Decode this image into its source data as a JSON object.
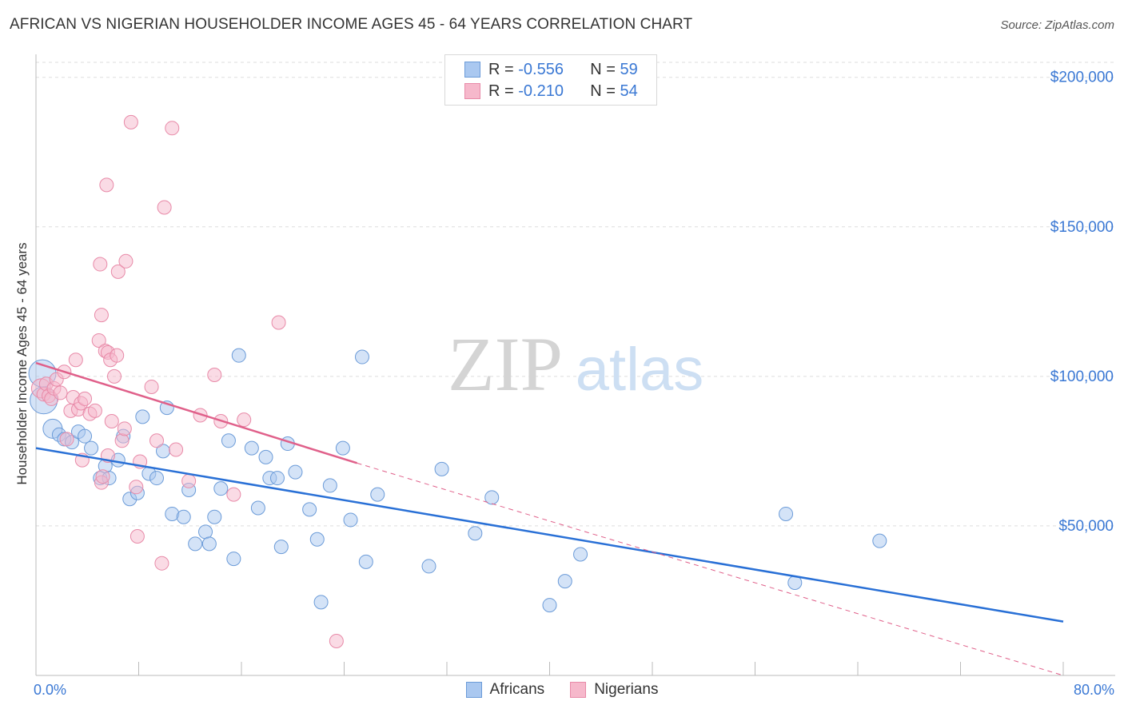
{
  "title": "AFRICAN VS NIGERIAN HOUSEHOLDER INCOME AGES 45 - 64 YEARS CORRELATION CHART",
  "source": "Source: ZipAtlas.com",
  "watermark": {
    "zip": "ZIP",
    "atlas": "atlas"
  },
  "stats": {
    "africans": {
      "r_label": "R =",
      "r": "-0.556",
      "n_label": "N =",
      "n": "59"
    },
    "nigerians": {
      "r_label": "R =",
      "r": "-0.210",
      "n_label": "N =",
      "n": "54"
    }
  },
  "legend": {
    "africans": "Africans",
    "nigerians": "Nigerians"
  },
  "colors": {
    "africans_fill": "#aac8f0",
    "africans_stroke": "#6b9bd8",
    "africans_line": "#2970d6",
    "nigerians_fill": "#f6b8cb",
    "nigerians_stroke": "#e88aa8",
    "nigerians_line": "#e0608a",
    "axis_text": "#3a78d4",
    "grid": "#dddddd"
  },
  "chart_data": {
    "type": "scatter",
    "title": "AFRICAN VS NIGERIAN HOUSEHOLDER INCOME AGES 45 - 64 YEARS CORRELATION CHART",
    "xlabel": "",
    "ylabel": "Householder Income Ages 45 - 64 years",
    "x_tick_labels": [
      "0.0%",
      "80.0%"
    ],
    "y_tick_labels": [
      "$50,000",
      "$100,000",
      "$150,000",
      "$200,000"
    ],
    "y_ticks": [
      50000,
      100000,
      150000,
      200000
    ],
    "xlim": [
      0,
      80
    ],
    "ylim": [
      0,
      205000
    ],
    "grid": true,
    "legend_position": "bottom-center",
    "series": [
      {
        "name": "Africans",
        "points": [
          [
            0.5,
            101000,
            "lg"
          ],
          [
            0.6,
            92000,
            "lg"
          ],
          [
            1.3,
            82500,
            "md"
          ],
          [
            1.8,
            80500,
            "sm"
          ],
          [
            2.2,
            79000,
            "sm"
          ],
          [
            2.8,
            78000,
            "sm"
          ],
          [
            3.3,
            81500,
            "sm"
          ],
          [
            3.8,
            80000,
            "sm"
          ],
          [
            4.3,
            76000,
            "sm"
          ],
          [
            5.0,
            66000,
            "sm"
          ],
          [
            5.4,
            70000,
            "sm"
          ],
          [
            5.7,
            66000,
            "sm"
          ],
          [
            6.4,
            72000,
            "sm"
          ],
          [
            6.8,
            80000,
            "sm"
          ],
          [
            7.3,
            59000,
            "sm"
          ],
          [
            7.9,
            61000,
            "sm"
          ],
          [
            8.3,
            86500,
            "sm"
          ],
          [
            8.8,
            67500,
            "sm"
          ],
          [
            9.4,
            66000,
            "sm"
          ],
          [
            10.2,
            89500,
            "sm"
          ],
          [
            9.9,
            75000,
            "sm"
          ],
          [
            10.6,
            54000,
            "sm"
          ],
          [
            11.5,
            53000,
            "sm"
          ],
          [
            11.9,
            62000,
            "sm"
          ],
          [
            12.4,
            44000,
            "sm"
          ],
          [
            13.2,
            48000,
            "sm"
          ],
          [
            13.5,
            44000,
            "sm"
          ],
          [
            13.9,
            53000,
            "sm"
          ],
          [
            14.4,
            62500,
            "sm"
          ],
          [
            15.0,
            78500,
            "sm"
          ],
          [
            15.4,
            39000,
            "sm"
          ],
          [
            15.8,
            107000,
            "sm"
          ],
          [
            16.8,
            76000,
            "sm"
          ],
          [
            17.3,
            56000,
            "sm"
          ],
          [
            17.9,
            73000,
            "sm"
          ],
          [
            18.2,
            66000,
            "sm"
          ],
          [
            18.8,
            66000,
            "sm"
          ],
          [
            19.1,
            43000,
            "sm"
          ],
          [
            19.6,
            77500,
            "sm"
          ],
          [
            20.2,
            68000,
            "sm"
          ],
          [
            21.3,
            55500,
            "sm"
          ],
          [
            21.9,
            45500,
            "sm"
          ],
          [
            22.2,
            24500,
            "sm"
          ],
          [
            22.9,
            63500,
            "sm"
          ],
          [
            23.9,
            76000,
            "sm"
          ],
          [
            24.5,
            52000,
            "sm"
          ],
          [
            25.4,
            106500,
            "sm"
          ],
          [
            25.7,
            38000,
            "sm"
          ],
          [
            26.6,
            60500,
            "sm"
          ],
          [
            30.6,
            36500,
            "sm"
          ],
          [
            31.6,
            69000,
            "sm"
          ],
          [
            34.2,
            47500,
            "sm"
          ],
          [
            35.5,
            59500,
            "sm"
          ],
          [
            40.0,
            23500,
            "sm"
          ],
          [
            41.2,
            31500,
            "sm"
          ],
          [
            42.4,
            40500,
            "sm"
          ],
          [
            58.4,
            54000,
            "sm"
          ],
          [
            59.1,
            31000,
            "sm"
          ],
          [
            65.7,
            45000,
            "sm"
          ]
        ]
      },
      {
        "name": "Nigerians",
        "points": [
          [
            0.4,
            96000,
            "md"
          ],
          [
            0.6,
            94000,
            "sm"
          ],
          [
            0.8,
            97500,
            "sm"
          ],
          [
            1.0,
            93500,
            "sm"
          ],
          [
            1.2,
            92500,
            "sm"
          ],
          [
            1.4,
            96000,
            "sm"
          ],
          [
            1.6,
            99000,
            "sm"
          ],
          [
            1.9,
            94500,
            "sm"
          ],
          [
            2.2,
            101500,
            "sm"
          ],
          [
            2.4,
            79000,
            "sm"
          ],
          [
            2.7,
            88500,
            "sm"
          ],
          [
            2.9,
            93000,
            "sm"
          ],
          [
            3.1,
            105500,
            "sm"
          ],
          [
            3.3,
            89000,
            "sm"
          ],
          [
            3.5,
            91000,
            "sm"
          ],
          [
            3.8,
            92500,
            "sm"
          ],
          [
            4.2,
            87500,
            "sm"
          ],
          [
            4.6,
            88500,
            "sm"
          ],
          [
            4.9,
            112000,
            "sm"
          ],
          [
            5.1,
            120500,
            "sm"
          ],
          [
            5.4,
            108500,
            "sm"
          ],
          [
            5.6,
            108000,
            "sm"
          ],
          [
            5.9,
            85000,
            "sm"
          ],
          [
            5.1,
            64500,
            "sm"
          ],
          [
            5.2,
            66500,
            "sm"
          ],
          [
            5.6,
            73500,
            "sm"
          ],
          [
            5.8,
            105500,
            "sm"
          ],
          [
            6.1,
            100000,
            "sm"
          ],
          [
            6.3,
            107000,
            "sm"
          ],
          [
            6.7,
            78500,
            "sm"
          ],
          [
            6.9,
            82500,
            "sm"
          ],
          [
            5.5,
            164000,
            "sm"
          ],
          [
            5.0,
            137500,
            "sm"
          ],
          [
            6.4,
            135000,
            "sm"
          ],
          [
            7.0,
            138500,
            "sm"
          ],
          [
            7.4,
            185000,
            "sm"
          ],
          [
            7.9,
            46500,
            "sm"
          ],
          [
            7.8,
            63000,
            "sm"
          ],
          [
            8.1,
            71500,
            "sm"
          ],
          [
            9.0,
            96500,
            "sm"
          ],
          [
            9.4,
            78500,
            "sm"
          ],
          [
            9.8,
            37500,
            "sm"
          ],
          [
            10.0,
            156500,
            "sm"
          ],
          [
            10.6,
            183000,
            "sm"
          ],
          [
            10.9,
            75500,
            "sm"
          ],
          [
            11.9,
            65000,
            "sm"
          ],
          [
            13.9,
            100500,
            "sm"
          ],
          [
            14.4,
            85000,
            "sm"
          ],
          [
            15.4,
            60500,
            "sm"
          ],
          [
            16.2,
            85500,
            "sm"
          ],
          [
            18.9,
            118000,
            "sm"
          ],
          [
            23.4,
            11500,
            "sm"
          ],
          [
            12.8,
            87000,
            "sm"
          ],
          [
            3.6,
            72000,
            "sm"
          ]
        ]
      }
    ],
    "trendlines": [
      {
        "series": "Africans",
        "x_start": 0,
        "y_start": 76000,
        "x_end": 80,
        "y_end": 18000,
        "style": "solid"
      },
      {
        "series": "Nigerians",
        "x_start": 0,
        "y_start": 104500,
        "x_end": 25,
        "y_end": 71000,
        "style": "solid"
      },
      {
        "series": "Nigerians",
        "x_start": 25,
        "y_start": 71000,
        "x_end": 80,
        "y_end": 0,
        "style": "dashed"
      }
    ]
  }
}
